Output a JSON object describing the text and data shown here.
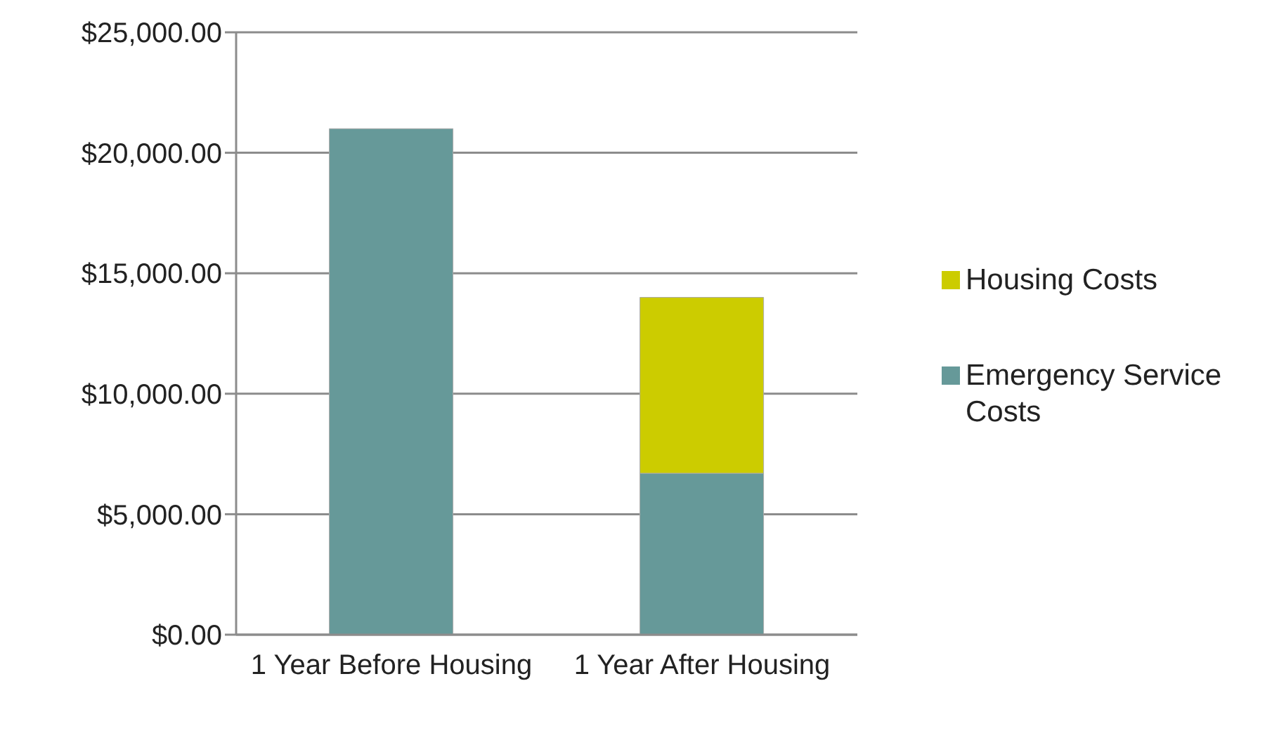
{
  "chart_data": {
    "type": "bar",
    "stacked": true,
    "categories": [
      "1 Year Before Housing",
      "1 Year After Housing"
    ],
    "series": [
      {
        "name": "Emergency Service Costs",
        "color": "#669999",
        "values": [
          21000,
          6700
        ]
      },
      {
        "name": "Housing Costs",
        "color": "#cccc00",
        "values": [
          null,
          7300
        ]
      }
    ],
    "ylim": [
      0,
      25000
    ],
    "yticks": [
      {
        "value": 0,
        "label": "$0.00"
      },
      {
        "value": 5000,
        "label": "$5,000.00"
      },
      {
        "value": 10000,
        "label": "$10,000.00"
      },
      {
        "value": 15000,
        "label": "$15,000.00"
      },
      {
        "value": 20000,
        "label": "$20,000.00"
      },
      {
        "value": 25000,
        "label": "$25,000.00"
      }
    ],
    "grid": "y",
    "legend": "right"
  }
}
